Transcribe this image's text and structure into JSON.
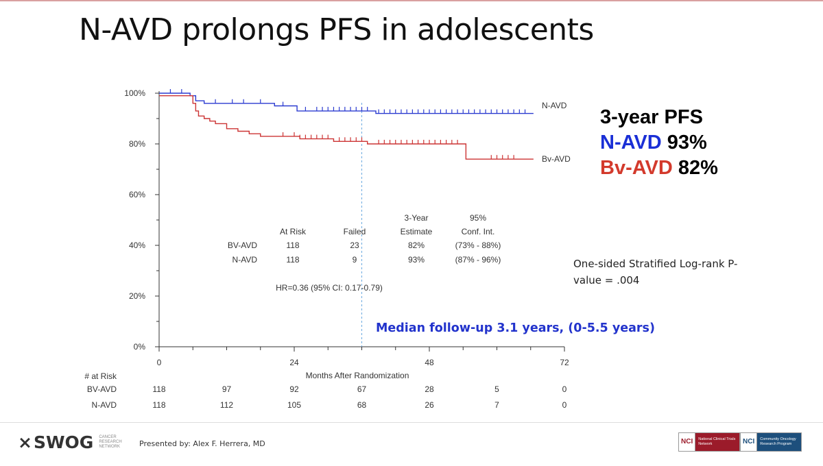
{
  "slide": {
    "title": "N-AVD prolongs PFS in adolescents",
    "summary": {
      "heading": "3-year PFS",
      "rows": [
        {
          "arm": "N-AVD",
          "value": "93%",
          "color": "#1a2fd6"
        },
        {
          "arm": "Bv-AVD",
          "value": "82%",
          "color": "#d33a2c"
        }
      ]
    },
    "pvalue_text": "One-sided Stratified Log-rank P-value = .004",
    "followup_text": "Median follow-up 3.1 years, (0-5.5 years)"
  },
  "chart_data": {
    "type": "line",
    "subtype": "kaplan-meier",
    "title": "",
    "xlabel": "Months After Randomization",
    "ylabel": "",
    "xlim": [
      0,
      72
    ],
    "ylim": [
      0,
      100
    ],
    "xticks": [
      0,
      24,
      48,
      72
    ],
    "yticks": [
      "0%",
      "20%",
      "40%",
      "60%",
      "80%",
      "100%"
    ],
    "reference_line_x": 36,
    "series": [
      {
        "name": "N-AVD",
        "color": "#2a3ad0",
        "steps": [
          [
            0,
            100
          ],
          [
            5.5,
            99
          ],
          [
            6.5,
            97
          ],
          [
            8,
            96
          ],
          [
            20.5,
            95
          ],
          [
            24.5,
            93
          ],
          [
            38.5,
            92
          ],
          [
            66.5,
            92
          ]
        ],
        "censor_times": [
          2,
          4,
          10,
          13,
          15,
          18,
          22,
          26,
          28,
          29,
          30,
          31,
          32,
          33,
          34,
          35,
          36,
          37,
          39,
          40,
          41,
          42,
          43,
          44,
          45,
          46,
          47,
          48,
          49,
          50,
          51,
          52,
          53,
          54,
          55,
          56,
          57,
          58,
          59,
          60,
          61,
          62,
          63,
          64,
          65
        ]
      },
      {
        "name": "Bv-AVD",
        "color": "#cc3333",
        "steps": [
          [
            0,
            99
          ],
          [
            6,
            96
          ],
          [
            6.5,
            93
          ],
          [
            7,
            91
          ],
          [
            8,
            90
          ],
          [
            9,
            89
          ],
          [
            10,
            88
          ],
          [
            12,
            86
          ],
          [
            14,
            85
          ],
          [
            16,
            84
          ],
          [
            18,
            83
          ],
          [
            25,
            82
          ],
          [
            31,
            81
          ],
          [
            37,
            80
          ],
          [
            54.5,
            74
          ],
          [
            66.5,
            74
          ]
        ],
        "censor_times": [
          22,
          24,
          25,
          26,
          27,
          28,
          29,
          30,
          32,
          33,
          34,
          35,
          36,
          39,
          40,
          41,
          42,
          43,
          44,
          45,
          46,
          47,
          48,
          49,
          50,
          51,
          52,
          53,
          59,
          60,
          61,
          62,
          63
        ]
      }
    ],
    "end_labels": [
      "N-AVD",
      "Bv-AVD"
    ],
    "stats_table": {
      "headers": [
        "At Risk",
        "Failed",
        "3-Year\nEstimate",
        "95%\nConf. Int."
      ],
      "header_line1": [
        "",
        "",
        "3-Year",
        "95%"
      ],
      "header_line2": [
        "At Risk",
        "Failed",
        "Estimate",
        "Conf. Int."
      ],
      "rows": [
        {
          "arm": "BV-AVD",
          "at_risk": "118",
          "failed": "23",
          "estimate": "82%",
          "ci": "(73% - 88%)"
        },
        {
          "arm": "N-AVD",
          "at_risk": "118",
          "failed": "9",
          "estimate": "93%",
          "ci": "(87% - 96%)"
        }
      ]
    },
    "hr_text": "HR=0.36 (95% CI: 0.17-0.79)",
    "at_risk_table": {
      "label": "# at Risk",
      "times": [
        0,
        12,
        24,
        36,
        48,
        60,
        72
      ],
      "rows": [
        {
          "arm": "BV-AVD",
          "counts": [
            "118",
            "97",
            "92",
            "67",
            "28",
            "5",
            "0"
          ]
        },
        {
          "arm": "N-AVD",
          "counts": [
            "118",
            "112",
            "105",
            "68",
            "26",
            "7",
            "0"
          ]
        }
      ]
    }
  },
  "footer": {
    "logo_text": "SWOG",
    "logo_sub": [
      "CANCER",
      "RESEARCH",
      "NETWORK"
    ],
    "presenter": "Presented by: Alex F. Herrera, MD",
    "badges": [
      {
        "word": "NCI",
        "desc": "National Clinical Trials Network"
      },
      {
        "word": "NCI",
        "desc": "Community Oncology Research Program"
      }
    ]
  }
}
